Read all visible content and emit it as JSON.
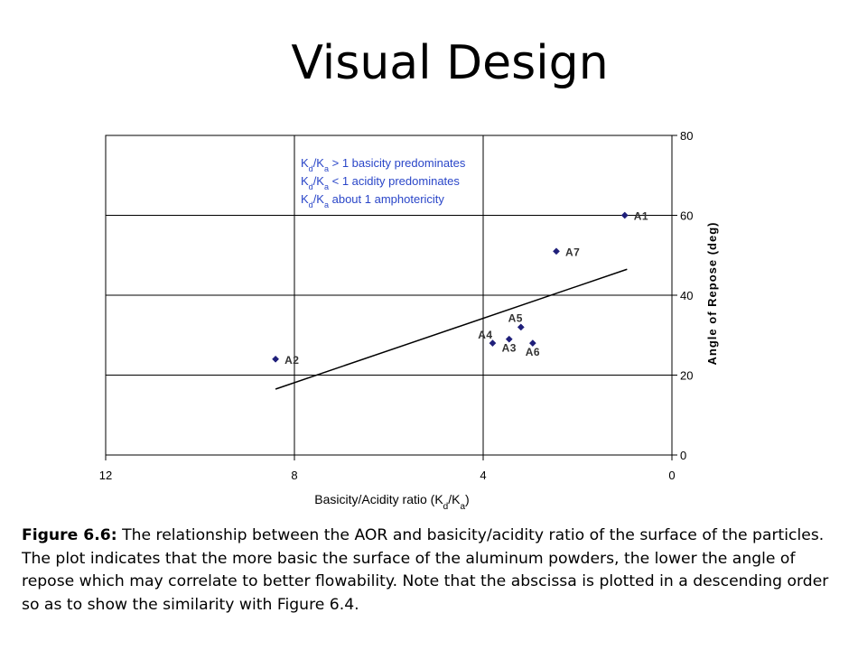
{
  "slide": {
    "title": "Visual Design",
    "caption_label": "Figure 6.6:",
    "caption_text": " The relationship between the AOR and basicity/acidity ratio of the surface of the particles. The plot indicates that the more basic the surface of the aluminum powders, the lower the angle of repose which may correlate to better flowability.  Note that the abscissa is plotted in a descending order so as to show the similarity with Figure 6.4."
  },
  "chart_data": {
    "type": "scatter",
    "x_reversed": true,
    "xlim": [
      0,
      12
    ],
    "ylim": [
      0,
      80
    ],
    "x_ticks": [
      12,
      8,
      4,
      0
    ],
    "y_ticks": [
      0,
      20,
      40,
      60,
      80
    ],
    "grid": true,
    "y_axis_side": "right",
    "xlabel": {
      "main": "Basicity/Acidity ratio (K",
      "sub1": "d",
      "mid": "/K",
      "sub2": "a",
      "end": ")"
    },
    "ylabel": "Angle of Repose (deg)",
    "marker_color": "#1f1f7a",
    "annotation_color": "#2a46c8",
    "points": [
      {
        "label": "A1",
        "x": 1.0,
        "y": 60
      },
      {
        "label": "A7",
        "x": 2.45,
        "y": 51
      },
      {
        "label": "A5",
        "x": 3.2,
        "y": 32
      },
      {
        "label": "A4",
        "x": 3.8,
        "y": 28
      },
      {
        "label": "A3",
        "x": 3.45,
        "y": 29
      },
      {
        "label": "A6",
        "x": 2.95,
        "y": 28
      },
      {
        "label": "A2",
        "x": 8.4,
        "y": 24
      }
    ],
    "trendline": [
      {
        "x": 8.4,
        "y": 16.5
      },
      {
        "x": 0.95,
        "y": 46.5
      }
    ],
    "annotations": [
      {
        "main": "K",
        "sub1": "d",
        "mid": "/K",
        "sub2": "a",
        "rest": " > 1 basicity predominates"
      },
      {
        "main": "K",
        "sub1": "d",
        "mid": "/K",
        "sub2": "a",
        "rest": " < 1 acidity predominates"
      },
      {
        "main": "K",
        "sub1": "d",
        "mid": "/K",
        "sub2": "a",
        "rest": " about 1 amphotericity"
      }
    ]
  }
}
